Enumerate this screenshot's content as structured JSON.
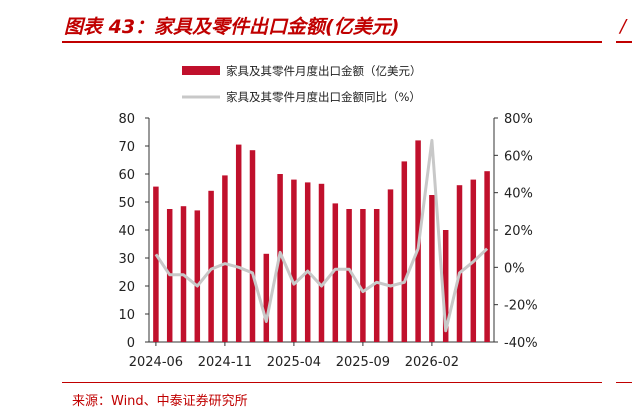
{
  "title": "图表 43：家具及零件出口金额(亿美元)",
  "source": "来源：Wind、中泰证券研究所",
  "right_panel_glyph": "/",
  "colors": {
    "bar": "#c0102c",
    "line": "#c8c8c8",
    "accent": "#c00000"
  },
  "chart_data": {
    "type": "bar+line",
    "legend_position": "top-center",
    "grid": false,
    "categories": [
      "2024-06",
      "2024-07",
      "2024-08",
      "2024-09",
      "2024-10",
      "2024-11",
      "2024-12",
      "2025-01",
      "2025-02",
      "2025-03",
      "2025-04",
      "2025-05",
      "2025-06",
      "2025-07",
      "2025-08",
      "2025-09",
      "2025-10",
      "2025-11",
      "2025-12",
      "2026-01",
      "2026-02",
      "2026-03",
      "2026-04",
      "2026-05",
      "2026-06"
    ],
    "x_tick_labels": [
      "2024-06",
      "2024-11",
      "2025-04",
      "2025-09",
      "2026-02"
    ],
    "x_tick_categories": [
      "2024-06",
      "2024-11",
      "2025-04",
      "2025-09",
      "2026-02"
    ],
    "series": [
      {
        "name": "家具及其零件月度出口金额（亿美元）",
        "type": "bar",
        "axis": "left",
        "values": [
          55.5,
          47.5,
          48.5,
          47,
          54,
          59.5,
          70.5,
          68.5,
          31.5,
          60,
          58,
          57,
          56.5,
          49.5,
          47.5,
          47.5,
          47.5,
          54.5,
          64.5,
          72,
          52.5,
          40,
          56,
          58,
          61
        ]
      },
      {
        "name": "家具及其零件月度出口金额同比（%）",
        "type": "line",
        "axis": "right",
        "values": [
          7,
          -4,
          -4,
          -10,
          -1,
          2,
          0,
          -3,
          -29,
          8,
          -9,
          -2,
          -10,
          -1,
          -1,
          -13,
          -8,
          -10,
          -8,
          10,
          68,
          -34,
          -3,
          3,
          10
        ]
      }
    ],
    "y_left": {
      "min": 0,
      "max": 80,
      "ticks": [
        0,
        10,
        20,
        30,
        40,
        50,
        60,
        70,
        80
      ]
    },
    "y_right": {
      "min": -40,
      "max": 80,
      "ticks": [
        "-40%",
        "-20%",
        "0%",
        "20%",
        "40%",
        "60%",
        "80%"
      ],
      "tick_values": [
        -40,
        -20,
        0,
        20,
        40,
        60,
        80
      ]
    }
  }
}
